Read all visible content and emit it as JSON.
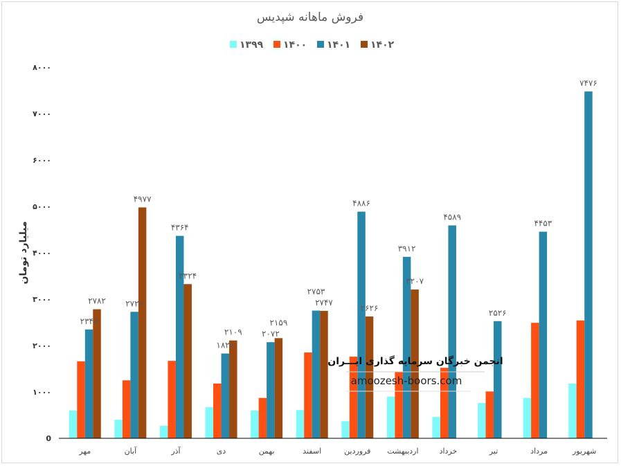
{
  "chart_data": {
    "type": "bar",
    "title": "فروش ماهانه شپدیس",
    "xlabel": "",
    "ylabel": "میلیارد تومان",
    "ylim": [
      0,
      8000
    ],
    "yticks": [
      0,
      1000,
      2000,
      3000,
      4000,
      5000,
      6000,
      7000,
      8000
    ],
    "ytick_labels": [
      "0",
      "۱۰۰۰",
      "۲۰۰۰",
      "۳۰۰۰",
      "۴۰۰۰",
      "۵۰۰۰",
      "۶۰۰۰",
      "۷۰۰۰",
      "۸۰۰۰"
    ],
    "grid": false,
    "legend_position": "top",
    "categories": [
      "مهر",
      "آبان",
      "آذر",
      "دی",
      "بهمن",
      "اسفند",
      "فروردین",
      "اردیبهشت",
      "خرداد",
      "تیر",
      "مرداد",
      "شهریور"
    ],
    "series": [
      {
        "name": "۱۳۹۹",
        "color": "#7ffafa",
        "labels": false,
        "values": [
          600,
          400,
          270,
          670,
          600,
          610,
          370,
          900,
          460,
          760,
          870,
          1180
        ]
      },
      {
        "name": "۱۴۰۰",
        "color": "#ff5014",
        "labels": false,
        "values": [
          1660,
          1250,
          1670,
          1180,
          870,
          1850,
          1760,
          1430,
          1520,
          1010,
          2490,
          2540
        ]
      },
      {
        "name": "۱۴۰۱",
        "color": "#2887a8",
        "labels": true,
        "values": [
          2347,
          2727,
          4364,
          1828,
          2072,
          2753,
          4886,
          3912,
          4589,
          2526,
          4453,
          7476
        ]
      },
      {
        "name": "۱۴۰۲",
        "color": "#9c4a10",
        "labels": true,
        "values": [
          2782,
          4977,
          3324,
          2109,
          2159,
          2747,
          2626,
          3207,
          null,
          null,
          null,
          null
        ]
      }
    ]
  },
  "watermark": {
    "line1": "انجمن خبرگان سرمایه گذاری ایـــران",
    "line2": "amoozesh-boors.com"
  }
}
